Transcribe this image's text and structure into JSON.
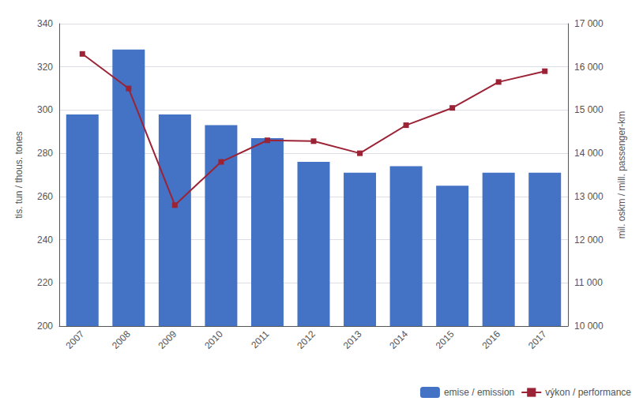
{
  "chart_data": {
    "type": "bar",
    "categories": [
      "2007",
      "2008",
      "2009",
      "2010",
      "2011",
      "2012",
      "2013",
      "2014",
      "2015",
      "2016",
      "2017"
    ],
    "series": [
      {
        "name": "emise / emission",
        "type": "bar",
        "color": "#4472C4",
        "values": [
          298,
          328,
          298,
          293,
          287,
          276,
          271,
          274,
          265,
          271,
          271
        ]
      },
      {
        "name": "výkon / performance",
        "type": "line",
        "color": "#9B2335",
        "marker": "square",
        "axis": "y2",
        "values": [
          16300,
          15500,
          12800,
          13800,
          14300,
          14280,
          14000,
          14650,
          15050,
          15650,
          15900
        ]
      }
    ],
    "ylabel": "tis. tun / thous. tones",
    "y2label": "mil. oskm / mill. passenger-km",
    "ylim": [
      200,
      340
    ],
    "yticks": [
      200,
      220,
      240,
      260,
      280,
      300,
      320,
      340
    ],
    "y2lim": [
      10000,
      17000
    ],
    "y2ticks": [
      {
        "value": 10000,
        "label": "10 000"
      },
      {
        "value": 11000,
        "label": "11 000"
      },
      {
        "value": 12000,
        "label": "12 000"
      },
      {
        "value": 13000,
        "label": "13 000"
      },
      {
        "value": 14000,
        "label": "14 000"
      },
      {
        "value": 15000,
        "label": "15 000"
      },
      {
        "value": 16000,
        "label": "16 000"
      },
      {
        "value": 17000,
        "label": "17 000"
      }
    ],
    "grid": true,
    "legend": "lower right"
  }
}
